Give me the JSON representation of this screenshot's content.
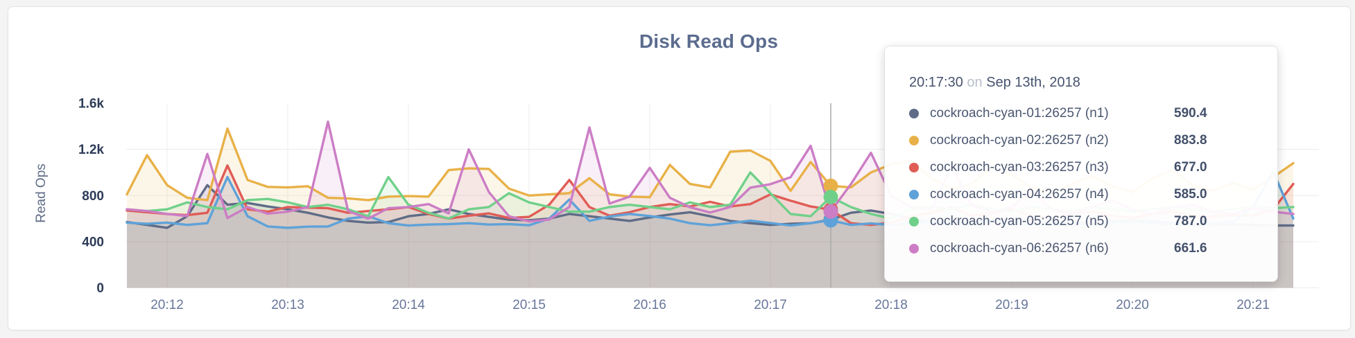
{
  "page": {
    "background": "#f4f4f5",
    "card_background": "#ffffff"
  },
  "header": {
    "title": "Disk Read Ops"
  },
  "axes": {
    "y_label": "Read Ops",
    "y_tick_color": "#2c3b57",
    "x_tick_color": "#66759a",
    "grid_color": "#ececec",
    "y_ticks": [
      {
        "value": 0,
        "label": "0",
        "grid": true
      },
      {
        "value": 400,
        "label": "400",
        "grid": true
      },
      {
        "value": 800,
        "label": "800",
        "grid": true
      },
      {
        "value": 1200,
        "label": "1.2k",
        "grid": true
      },
      {
        "value": 1600,
        "label": "1.6k",
        "grid": false
      }
    ],
    "x_ticks": [
      {
        "seconds": 720,
        "label": "20:12"
      },
      {
        "seconds": 780,
        "label": "20:13"
      },
      {
        "seconds": 840,
        "label": "20:14"
      },
      {
        "seconds": 900,
        "label": "20:15"
      },
      {
        "seconds": 960,
        "label": "20:16"
      },
      {
        "seconds": 1020,
        "label": "20:17"
      },
      {
        "seconds": 1080,
        "label": "20:18"
      },
      {
        "seconds": 1140,
        "label": "20:19"
      },
      {
        "seconds": 1200,
        "label": "20:20"
      },
      {
        "seconds": 1260,
        "label": "20:21"
      }
    ]
  },
  "tooltip": {
    "time": "20:17:30",
    "connector": "on",
    "date": "Sep 13th, 2018",
    "rows": [
      {
        "label": "cockroach-cyan-01:26257 (n1)",
        "value": "590.4",
        "color": "#5f6c87"
      },
      {
        "label": "cockroach-cyan-02:26257 (n2)",
        "value": "883.8",
        "color": "#e8b148"
      },
      {
        "label": "cockroach-cyan-03:26257 (n3)",
        "value": "677.0",
        "color": "#e05c56"
      },
      {
        "label": "cockroach-cyan-04:26257 (n4)",
        "value": "585.0",
        "color": "#5ea2d9"
      },
      {
        "label": "cockroach-cyan-05:26257 (n5)",
        "value": "787.0",
        "color": "#70d08a"
      },
      {
        "label": "cockroach-cyan-06:26257 (n6)",
        "value": "661.6",
        "color": "#cc7dc5"
      }
    ]
  },
  "chart_data": {
    "type": "area",
    "title": "Disk Read Ops",
    "ylabel": "Read Ops",
    "ylim": [
      0,
      1600
    ],
    "grid": true,
    "x_start": "20:11:40",
    "x_end": "20:21:20",
    "x_start_seconds": 700,
    "x_interval_seconds": 10,
    "hover": {
      "time": "20:17:30",
      "x_seconds": 1050,
      "date": "Sep 13th, 2018"
    },
    "line_width": 3.4,
    "fill_opacity": 0.12,
    "series": [
      {
        "name": "cockroach-cyan-01:26257 (n1)",
        "color": "#5f6c87",
        "values": [
          570,
          545,
          520,
          620,
          890,
          720,
          735,
          705,
          680,
          650,
          610,
          580,
          565,
          570,
          620,
          640,
          680,
          640,
          615,
          590,
          585,
          600,
          640,
          620,
          600,
          580,
          610,
          635,
          655,
          620,
          580,
          560,
          545,
          555,
          560,
          590.4,
          650,
          670,
          640,
          600,
          570,
          560,
          570,
          585,
          600,
          585,
          570,
          560,
          565,
          575,
          585,
          575,
          560,
          550,
          545,
          550,
          545,
          540,
          540
        ]
      },
      {
        "name": "cockroach-cyan-02:26257 (n2)",
        "color": "#e8b148",
        "values": [
          810,
          1150,
          890,
          780,
          760,
          1380,
          935,
          875,
          870,
          880,
          780,
          775,
          760,
          790,
          795,
          790,
          1020,
          1035,
          1030,
          860,
          800,
          810,
          820,
          950,
          810,
          790,
          785,
          1065,
          900,
          870,
          1180,
          1190,
          1100,
          840,
          1090,
          883.8,
          870,
          1000,
          1070,
          1100,
          950,
          860,
          900,
          1050,
          980,
          870,
          820,
          900,
          970,
          880,
          830,
          950,
          1020,
          890,
          840,
          910,
          850,
          960,
          1080
        ]
      },
      {
        "name": "cockroach-cyan-03:26257 (n3)",
        "color": "#e05c56",
        "values": [
          670,
          655,
          640,
          630,
          650,
          1060,
          680,
          660,
          700,
          695,
          690,
          650,
          665,
          680,
          700,
          640,
          600,
          625,
          645,
          605,
          615,
          720,
          935,
          700,
          625,
          655,
          700,
          725,
          705,
          745,
          705,
          725,
          810,
          755,
          705,
          677,
          560,
          545,
          565,
          620,
          650,
          700,
          625,
          645,
          680,
          625,
          605,
          640,
          660,
          625,
          605,
          640,
          660,
          625,
          615,
          630,
          625,
          680,
          900
        ]
      },
      {
        "name": "cockroach-cyan-04:26257 (n4)",
        "color": "#5ea2d9",
        "values": [
          565,
          555,
          565,
          545,
          560,
          960,
          620,
          532,
          520,
          530,
          532,
          600,
          620,
          560,
          540,
          548,
          552,
          560,
          548,
          552,
          542,
          600,
          765,
          580,
          618,
          640,
          622,
          600,
          560,
          542,
          560,
          582,
          562,
          540,
          560,
          585,
          545,
          558,
          545,
          560,
          570,
          555,
          562,
          580,
          562,
          550,
          570,
          560,
          545,
          562,
          575,
          560,
          550,
          565,
          555,
          572,
          700,
          1010,
          600
        ]
      },
      {
        "name": "cockroach-cyan-05:26257 (n5)",
        "color": "#70d08a",
        "values": [
          680,
          665,
          680,
          740,
          700,
          680,
          760,
          770,
          740,
          700,
          720,
          680,
          620,
          960,
          720,
          650,
          600,
          680,
          700,
          820,
          740,
          700,
          660,
          660,
          700,
          720,
          700,
          680,
          740,
          700,
          720,
          1000,
          820,
          640,
          620,
          787,
          700,
          640,
          600,
          680,
          700,
          680,
          720,
          680,
          660,
          700,
          680,
          660,
          700,
          680,
          660,
          680,
          700,
          680,
          660,
          680,
          700,
          690,
          700
        ]
      },
      {
        "name": "cockroach-cyan-06:26257 (n6)",
        "color": "#cc7dc5",
        "values": [
          680,
          665,
          640,
          622,
          1160,
          605,
          700,
          642,
          660,
          700,
          1440,
          665,
          600,
          690,
          700,
          725,
          645,
          1200,
          830,
          620,
          575,
          592,
          700,
          1390,
          730,
          790,
          1040,
          780,
          698,
          652,
          700,
          868,
          898,
          958,
          1230,
          661.6,
          898,
          1170,
          798,
          700,
          678,
          1050,
          718,
          652,
          700,
          848,
          678,
          642,
          700,
          758,
          678,
          640,
          700,
          718,
          658,
          640,
          688,
          660,
          640
        ]
      }
    ]
  }
}
